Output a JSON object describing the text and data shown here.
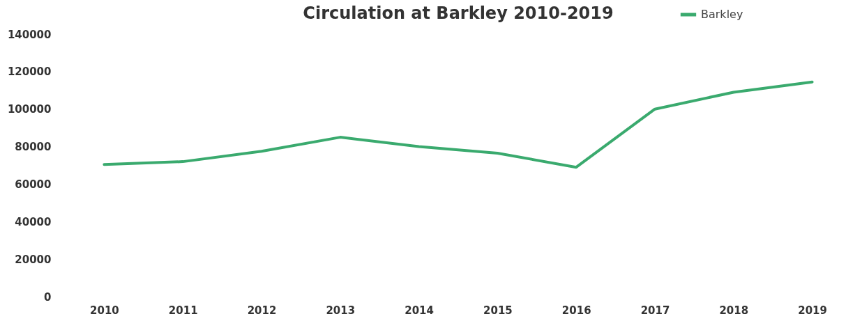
{
  "chart_data": {
    "type": "line",
    "title": "Circulation at Barkley 2010-2019",
    "categories": [
      "2010",
      "2011",
      "2012",
      "2013",
      "2014",
      "2015",
      "2016",
      "2017",
      "2018",
      "2019"
    ],
    "series": [
      {
        "name": "Barkley",
        "color": "#3aaa6e",
        "values": [
          70500,
          72000,
          77500,
          85000,
          80000,
          76500,
          69000,
          100000,
          109000,
          114500
        ]
      }
    ],
    "ylim": [
      0,
      140000
    ],
    "yticks": [
      0,
      20000,
      40000,
      60000,
      80000,
      100000,
      120000,
      140000
    ],
    "legend": "top right",
    "marker": "none",
    "line_style": "solid"
  }
}
